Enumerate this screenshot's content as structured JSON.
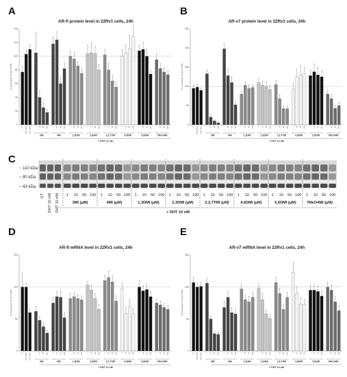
{
  "letters": {
    "a": "A",
    "b": "B",
    "c": "C",
    "d": "D",
    "e": "E"
  },
  "colors": {
    "black": "#111111",
    "dark": "#444444",
    "mid": "#6b6b6b",
    "midlight": "#8a8a8a",
    "light": "#c2c2c2",
    "vlight": "#e2e2e2",
    "vvlight": "#f3f3f3"
  },
  "chart_data": [
    {
      "panel": "A",
      "type": "bar",
      "title": "AR-fl protein level in 22Rv1 cells, 24h",
      "ylabel": "% of activation by DHT 10nM",
      "ylim": [
        0,
        140
      ],
      "yticks": [
        0,
        20,
        40,
        60,
        80,
        100,
        120,
        140
      ],
      "reference_line": 100,
      "footer": "+ DHT 10 nM",
      "groups": [
        {
          "label": "",
          "color": "black",
          "doses": [
            "UT",
            "DHT 10nM",
            "DHT 10nM"
          ],
          "values": [
            77,
            103,
            110
          ],
          "errors": [
            8,
            6,
            7
          ]
        },
        {
          "label": "3MI",
          "color": "dark",
          "doses": [
            "1",
            "10",
            "50",
            "100"
          ],
          "values": [
            105,
            40,
            25,
            18
          ],
          "errors": [
            30,
            10,
            8,
            5
          ]
        },
        {
          "label": "4MI",
          "color": "dark",
          "doses": [
            "1",
            "10",
            "50",
            "100"
          ],
          "values": [
            118,
            124,
            60,
            82
          ],
          "errors": [
            10,
            12,
            10,
            8
          ]
        },
        {
          "label": "1,3DMI",
          "color": "midlight",
          "doses": [
            "1",
            "10",
            "50",
            "100"
          ],
          "values": [
            100,
            96,
            86,
            75
          ],
          "errors": [
            8,
            10,
            6,
            8
          ]
        },
        {
          "label": "2,3DMI",
          "color": "light",
          "doses": [
            "1",
            "10",
            "50",
            "100"
          ],
          "values": [
            104,
            105,
            104,
            80
          ],
          "errors": [
            12,
            14,
            10,
            8
          ]
        },
        {
          "label": "2,3,7TMI",
          "color": "midlight",
          "doses": [
            "1",
            "10",
            "50",
            "100"
          ],
          "values": [
            102,
            80,
            64,
            55
          ],
          "errors": [
            8,
            10,
            8,
            8
          ]
        },
        {
          "label": "4,6DMI",
          "color": "vvlight",
          "doses": [
            "1",
            "10",
            "50",
            "100"
          ],
          "values": [
            100,
            105,
            111,
            129
          ],
          "errors": [
            10,
            12,
            20,
            16
          ]
        },
        {
          "label": "5,6DMI",
          "color": "black",
          "doses": [
            "1",
            "10",
            "50",
            "100"
          ],
          "values": [
            108,
            110,
            100,
            74
          ],
          "errors": [
            8,
            10,
            10,
            6
          ]
        },
        {
          "label": "7MeO4MI",
          "color": "mid",
          "doses": [
            "1",
            "10",
            "50",
            "100"
          ],
          "values": [
            95,
            82,
            77,
            73
          ],
          "errors": [
            8,
            8,
            6,
            6
          ]
        }
      ]
    },
    {
      "panel": "B",
      "type": "bar",
      "title": "AR-v7 protein level in 22Rv1 cells, 24h",
      "ylabel": "% of activation by DHT 10nM",
      "ylim": [
        0,
        250
      ],
      "yticks": [
        0,
        50,
        100,
        150,
        200,
        250
      ],
      "reference_line": 100,
      "footer": "+ DHT 10 nM",
      "groups": [
        {
          "label": "",
          "color": "black",
          "doses": [
            "UT",
            "DHT 10nM",
            "DHT 10nM"
          ],
          "values": [
            95,
            98,
            90
          ],
          "errors": [
            8,
            6,
            6
          ]
        },
        {
          "label": "3MI",
          "color": "dark",
          "doses": [
            "1",
            "10",
            "50",
            "100"
          ],
          "values": [
            133,
            20,
            10,
            5
          ],
          "errors": [
            10,
            5,
            3,
            2
          ]
        },
        {
          "label": "4MI",
          "color": "dark",
          "doses": [
            "1",
            "10",
            "50",
            "100"
          ],
          "values": [
            198,
            128,
            110,
            52
          ],
          "errors": [
            14,
            18,
            16,
            10
          ]
        },
        {
          "label": "1,3DMI",
          "color": "midlight",
          "doses": [
            "1",
            "10",
            "50",
            "100"
          ],
          "values": [
            80,
            103,
            95,
            97
          ],
          "errors": [
            8,
            10,
            10,
            8
          ]
        },
        {
          "label": "2,3DMI",
          "color": "light",
          "doses": [
            "1",
            "10",
            "50",
            "100"
          ],
          "values": [
            110,
            103,
            100,
            92
          ],
          "errors": [
            10,
            10,
            12,
            10
          ]
        },
        {
          "label": "2,3,7TMI",
          "color": "midlight",
          "doses": [
            "1",
            "10",
            "50",
            "100"
          ],
          "values": [
            105,
            68,
            42,
            42
          ],
          "errors": [
            10,
            10,
            8,
            8
          ]
        },
        {
          "label": "4,6DMI",
          "color": "vvlight",
          "doses": [
            "1",
            "10",
            "50",
            "100"
          ],
          "values": [
            93,
            125,
            130,
            133
          ],
          "errors": [
            16,
            20,
            25,
            16
          ]
        },
        {
          "label": "5,6DMI",
          "color": "black",
          "doses": [
            "1",
            "10",
            "50",
            "100"
          ],
          "values": [
            128,
            138,
            130,
            125
          ],
          "errors": [
            14,
            20,
            20,
            16
          ]
        },
        {
          "label": "7MeO4MI",
          "color": "mid",
          "doses": [
            "1",
            "10",
            "50",
            "100"
          ],
          "values": [
            80,
            68,
            43,
            50
          ],
          "errors": [
            10,
            10,
            8,
            8
          ]
        }
      ]
    },
    {
      "panel": "D",
      "type": "bar",
      "title": "AR-fl mRNA level in 22Rv1 cells, 24h",
      "ylabel": "% of activation by DHT 10nM",
      "ylim": [
        0,
        150
      ],
      "yticks": [
        0,
        50,
        100,
        150
      ],
      "reference_line": 100,
      "footer": "+ DHT 10 nM",
      "groups": [
        {
          "label": "",
          "color": "black",
          "doses": [
            "UT",
            "DHT 10nM",
            "DHT 10nM"
          ],
          "values": [
            100,
            100,
            60
          ],
          "errors": [
            22,
            6,
            6
          ]
        },
        {
          "label": "3MI",
          "color": "dark",
          "doses": [
            "1",
            "10",
            "50",
            "100"
          ],
          "values": [
            62,
            48,
            38,
            28
          ],
          "errors": [
            8,
            6,
            6,
            4
          ]
        },
        {
          "label": "4MI",
          "color": "dark",
          "doses": [
            "1",
            "10",
            "50",
            "100"
          ],
          "values": [
            75,
            85,
            84,
            52
          ],
          "errors": [
            8,
            8,
            10,
            8
          ]
        },
        {
          "label": "1,3DMI",
          "color": "midlight",
          "doses": [
            "1",
            "10",
            "50",
            "100"
          ],
          "values": [
            82,
            85,
            82,
            80
          ],
          "errors": [
            8,
            6,
            6,
            6
          ]
        },
        {
          "label": "2,3DMI",
          "color": "light",
          "doses": [
            "1",
            "10",
            "50",
            "100"
          ],
          "values": [
            103,
            95,
            82,
            65
          ],
          "errors": [
            6,
            8,
            8,
            8
          ]
        },
        {
          "label": "2,3,7TMI",
          "color": "midlight",
          "doses": [
            "1",
            "10",
            "50",
            "100"
          ],
          "values": [
            110,
            115,
            108,
            78
          ],
          "errors": [
            8,
            10,
            10,
            8
          ]
        },
        {
          "label": "4,6DMI",
          "color": "vvlight",
          "doses": [
            "1",
            "10",
            "50",
            "100"
          ],
          "values": [
            97,
            58,
            70,
            58
          ],
          "errors": [
            10,
            10,
            10,
            8
          ]
        },
        {
          "label": "5,6DMI",
          "color": "black",
          "doses": [
            "1",
            "10",
            "50",
            "100"
          ],
          "values": [
            100,
            94,
            96,
            85
          ],
          "errors": [
            10,
            8,
            8,
            8
          ]
        },
        {
          "label": "7MeO4MI",
          "color": "mid",
          "doses": [
            "1",
            "10",
            "50",
            "100"
          ],
          "values": [
            75,
            72,
            68,
            65
          ],
          "errors": [
            6,
            6,
            6,
            6
          ]
        }
      ]
    },
    {
      "panel": "E",
      "type": "bar",
      "title": "AR-v7 mRNA level in 22Rv1 cells, 24h",
      "ylabel": "% of activation by DHT 10nM",
      "ylim": [
        0,
        150
      ],
      "yticks": [
        0,
        50,
        100,
        150
      ],
      "reference_line": 100,
      "footer": "+ DHT 10 nM",
      "groups": [
        {
          "label": "",
          "color": "black",
          "doses": [
            "UT",
            "DHT 10nM",
            "DHT 10nM"
          ],
          "values": [
            107,
            100,
            101
          ],
          "errors": [
            8,
            6,
            6
          ]
        },
        {
          "label": "3MI",
          "color": "dark",
          "doses": [
            "1",
            "10",
            "50",
            "100"
          ],
          "values": [
            106,
            50,
            27,
            26
          ],
          "errors": [
            8,
            4,
            3,
            3
          ]
        },
        {
          "label": "4MI",
          "color": "dark",
          "doses": [
            "1",
            "10",
            "50",
            "100"
          ],
          "values": [
            68,
            84,
            60,
            58
          ],
          "errors": [
            10,
            10,
            8,
            8
          ]
        },
        {
          "label": "1,3DMI",
          "color": "midlight",
          "doses": [
            "1",
            "10",
            "50",
            "100"
          ],
          "values": [
            97,
            80,
            77,
            84
          ],
          "errors": [
            8,
            8,
            8,
            8
          ]
        },
        {
          "label": "2,3DMI",
          "color": "light",
          "doses": [
            "1",
            "10",
            "50",
            "100"
          ],
          "values": [
            98,
            80,
            58,
            51
          ],
          "errors": [
            8,
            10,
            6,
            6
          ]
        },
        {
          "label": "2,3,7TMI",
          "color": "midlight",
          "doses": [
            "1",
            "10",
            "50",
            "100"
          ],
          "values": [
            107,
            90,
            65,
            84
          ],
          "errors": [
            8,
            8,
            8,
            8
          ]
        },
        {
          "label": "4,6DMI",
          "color": "vvlight",
          "doses": [
            "1",
            "10",
            "50",
            "100"
          ],
          "values": [
            123,
            90,
            73,
            73
          ],
          "errors": [
            16,
            10,
            10,
            8
          ]
        },
        {
          "label": "5,6DMI",
          "color": "black",
          "doses": [
            "1",
            "10",
            "50",
            "100"
          ],
          "values": [
            95,
            95,
            93,
            86
          ],
          "errors": [
            8,
            8,
            8,
            8
          ]
        },
        {
          "label": "7MeO4MI",
          "color": "mid",
          "doses": [
            "1",
            "10",
            "50",
            "100"
          ],
          "values": [
            100,
            95,
            77,
            63
          ],
          "errors": [
            8,
            8,
            8,
            8
          ]
        }
      ]
    }
  ],
  "western": {
    "markers": [
      "~ 110 kDa",
      "~ 80 kDa",
      "~ 43 kDa"
    ],
    "lanes_left": [
      "UT",
      "DHT 10 nM",
      "DHT 10 nM"
    ],
    "doses": [
      "1",
      "10",
      "50",
      "100"
    ],
    "groups": [
      "3MI (μM)",
      "4MI (μM)",
      "1,3DMI (μM)",
      "2,3DMI (μM)",
      "2,3,7TMI (μM)",
      "4,6DMI (μM)",
      "5,6DMI (μM)",
      "7MeO4MI (μM)"
    ],
    "footer": "+ DHT 10 nM"
  }
}
